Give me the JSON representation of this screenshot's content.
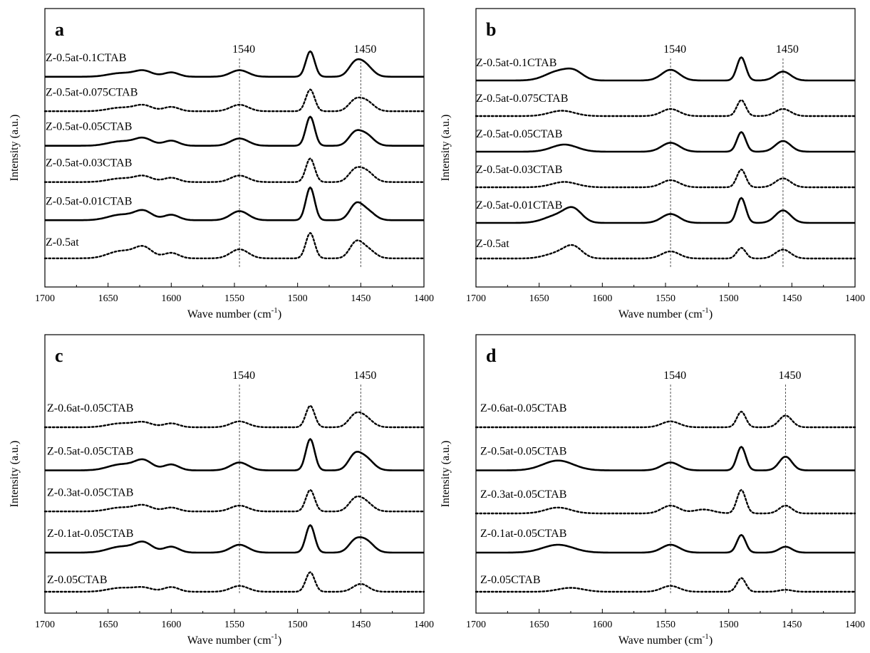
{
  "figure": {
    "x_ticks": [
      "1700",
      "1650",
      "1600",
      "1550",
      "1500",
      "1450",
      "1400"
    ]
  },
  "chart_data": [
    {
      "type": "line",
      "panel": "a",
      "xlabel": "Wave number (cm",
      "xlabel_sup": "-1",
      "xlabel_suffix": ")",
      "ylabel": "Intensity (a.u.)",
      "xlim": [
        1700,
        1400
      ],
      "y_ticks_shown": false,
      "reference_lines": [
        {
          "label": "1540",
          "x": 1546
        },
        {
          "label": "1450",
          "x": 1450
        }
      ],
      "series": [
        {
          "name": "Z-0.5at-0.1CTAB",
          "style": "solid",
          "baseline": 5.2,
          "peaks": [
            [
              1640,
              0.1,
              10
            ],
            [
              1622,
              0.16,
              7
            ],
            [
              1600,
              0.12,
              6
            ],
            [
              1546,
              0.18,
              7
            ],
            [
              1490,
              0.7,
              3.5
            ],
            [
              1455,
              0.3,
              5
            ],
            [
              1447,
              0.33,
              6
            ]
          ]
        },
        {
          "name": "Z-0.5at-0.075CTAB",
          "style": "dotted",
          "baseline": 4.25,
          "peaks": [
            [
              1640,
              0.1,
              10
            ],
            [
              1622,
              0.16,
              7
            ],
            [
              1600,
              0.12,
              6
            ],
            [
              1546,
              0.18,
              7
            ],
            [
              1490,
              0.6,
              3.5
            ],
            [
              1455,
              0.25,
              5
            ],
            [
              1446,
              0.28,
              6
            ]
          ]
        },
        {
          "name": "Z-0.5at-0.05CTAB",
          "style": "solid",
          "baseline": 3.3,
          "peaks": [
            [
              1640,
              0.12,
              10
            ],
            [
              1622,
              0.2,
              7
            ],
            [
              1600,
              0.14,
              6
            ],
            [
              1546,
              0.2,
              7
            ],
            [
              1490,
              0.8,
              3.5
            ],
            [
              1455,
              0.3,
              5
            ],
            [
              1446,
              0.3,
              6
            ]
          ]
        },
        {
          "name": "Z-0.5at-0.03CTAB",
          "style": "dotted",
          "baseline": 2.3,
          "peaks": [
            [
              1640,
              0.1,
              10
            ],
            [
              1622,
              0.16,
              7
            ],
            [
              1600,
              0.12,
              6
            ],
            [
              1546,
              0.18,
              7
            ],
            [
              1490,
              0.65,
              3.5
            ],
            [
              1455,
              0.28,
              5
            ],
            [
              1446,
              0.3,
              6
            ]
          ]
        },
        {
          "name": "Z-0.5at-0.01CTAB",
          "style": "solid",
          "baseline": 1.25,
          "peaks": [
            [
              1640,
              0.15,
              10
            ],
            [
              1622,
              0.25,
              7
            ],
            [
              1600,
              0.15,
              6
            ],
            [
              1546,
              0.25,
              7
            ],
            [
              1490,
              0.9,
              3.5
            ],
            [
              1454,
              0.4,
              5
            ],
            [
              1445,
              0.25,
              6
            ]
          ]
        },
        {
          "name": "Z-0.5at",
          "style": "dotted",
          "baseline": 0.2,
          "peaks": [
            [
              1640,
              0.2,
              10
            ],
            [
              1622,
              0.3,
              7
            ],
            [
              1600,
              0.15,
              6
            ],
            [
              1546,
              0.25,
              7
            ],
            [
              1490,
              0.7,
              3.5
            ],
            [
              1454,
              0.4,
              5
            ],
            [
              1445,
              0.25,
              6
            ]
          ]
        }
      ]
    },
    {
      "type": "line",
      "panel": "b",
      "xlabel": "Wave number (cm",
      "xlabel_sup": "-1",
      "xlabel_suffix": ")",
      "ylabel": "Intensity (a.u.)",
      "xlim": [
        1700,
        1400
      ],
      "y_ticks_shown": false,
      "reference_lines": [
        {
          "label": "1540",
          "x": 1546
        },
        {
          "label": "1450",
          "x": 1457
        }
      ],
      "series": [
        {
          "name": "Z-0.5at-0.1CTAB",
          "style": "solid",
          "baseline": 5.2,
          "peaks": [
            [
              1635,
              0.25,
              10
            ],
            [
              1622,
              0.2,
              7
            ],
            [
              1546,
              0.3,
              7
            ],
            [
              1490,
              0.65,
              3.5
            ],
            [
              1457,
              0.25,
              6
            ]
          ]
        },
        {
          "name": "Z-0.5at-0.075CTAB",
          "style": "dotted",
          "baseline": 4.2,
          "peaks": [
            [
              1632,
              0.15,
              10
            ],
            [
              1546,
              0.2,
              7
            ],
            [
              1490,
              0.45,
              3.5
            ],
            [
              1457,
              0.2,
              6
            ]
          ]
        },
        {
          "name": "Z-0.5at-0.05CTAB",
          "style": "solid",
          "baseline": 3.2,
          "peaks": [
            [
              1630,
              0.2,
              10
            ],
            [
              1546,
              0.25,
              7
            ],
            [
              1490,
              0.55,
              3.5
            ],
            [
              1457,
              0.3,
              6
            ]
          ]
        },
        {
          "name": "Z-0.5at-0.03CTAB",
          "style": "dotted",
          "baseline": 2.2,
          "peaks": [
            [
              1630,
              0.15,
              10
            ],
            [
              1546,
              0.2,
              7
            ],
            [
              1490,
              0.5,
              3.5
            ],
            [
              1457,
              0.25,
              6
            ]
          ]
        },
        {
          "name": "Z-0.5at-0.01CTAB",
          "style": "solid",
          "baseline": 1.2,
          "peaks": [
            [
              1636,
              0.2,
              10
            ],
            [
              1623,
              0.35,
              7
            ],
            [
              1546,
              0.25,
              7
            ],
            [
              1490,
              0.7,
              3.5
            ],
            [
              1457,
              0.35,
              6
            ]
          ]
        },
        {
          "name": "Z-0.5at",
          "style": "dotted",
          "baseline": 0.2,
          "peaks": [
            [
              1635,
              0.15,
              10
            ],
            [
              1623,
              0.3,
              7
            ],
            [
              1546,
              0.2,
              7
            ],
            [
              1490,
              0.3,
              3.5
            ],
            [
              1457,
              0.25,
              6
            ]
          ]
        }
      ]
    },
    {
      "type": "line",
      "panel": "c",
      "xlabel": "Wave number (cm",
      "xlabel_sup": "-1",
      "xlabel_suffix": ")",
      "ylabel": "Intensity (a.u.)",
      "xlim": [
        1700,
        1400
      ],
      "y_ticks_shown": false,
      "reference_lines": [
        {
          "label": "1540",
          "x": 1546
        },
        {
          "label": "1450",
          "x": 1450
        }
      ],
      "series": [
        {
          "name": "Z-0.6at-0.05CTAB",
          "style": "dotted",
          "baseline": 4.2,
          "peaks": [
            [
              1640,
              0.1,
              10
            ],
            [
              1622,
              0.12,
              7
            ],
            [
              1600,
              0.1,
              6
            ],
            [
              1546,
              0.15,
              7
            ],
            [
              1490,
              0.55,
              3.5
            ],
            [
              1455,
              0.25,
              5
            ],
            [
              1447,
              0.25,
              6
            ]
          ]
        },
        {
          "name": "Z-0.5at-0.05CTAB",
          "style": "solid",
          "baseline": 3.1,
          "peaks": [
            [
              1640,
              0.15,
              10
            ],
            [
              1622,
              0.25,
              7
            ],
            [
              1600,
              0.15,
              6
            ],
            [
              1546,
              0.2,
              7
            ],
            [
              1490,
              0.8,
              3.5
            ],
            [
              1455,
              0.35,
              5
            ],
            [
              1446,
              0.3,
              6
            ]
          ]
        },
        {
          "name": "Z-0.3at-0.05CTAB",
          "style": "dotted",
          "baseline": 2.05,
          "peaks": [
            [
              1640,
              0.1,
              10
            ],
            [
              1622,
              0.15,
              7
            ],
            [
              1600,
              0.1,
              6
            ],
            [
              1546,
              0.15,
              7
            ],
            [
              1490,
              0.55,
              3.5
            ],
            [
              1455,
              0.25,
              5
            ],
            [
              1447,
              0.25,
              6
            ]
          ]
        },
        {
          "name": "Z-0.1at-0.05CTAB",
          "style": "solid",
          "baseline": 1.0,
          "peaks": [
            [
              1640,
              0.15,
              10
            ],
            [
              1622,
              0.25,
              7
            ],
            [
              1600,
              0.15,
              6
            ],
            [
              1546,
              0.2,
              7
            ],
            [
              1490,
              0.7,
              3.5
            ],
            [
              1455,
              0.25,
              5
            ],
            [
              1446,
              0.3,
              6
            ]
          ]
        },
        {
          "name": "Z-0.05CTAB",
          "style": "dotted",
          "baseline": 0.0,
          "peaks": [
            [
              1640,
              0.1,
              10
            ],
            [
              1622,
              0.1,
              7
            ],
            [
              1600,
              0.12,
              6
            ],
            [
              1546,
              0.15,
              7
            ],
            [
              1490,
              0.5,
              3.5
            ],
            [
              1450,
              0.2,
              6
            ]
          ]
        }
      ]
    },
    {
      "type": "line",
      "panel": "d",
      "xlabel": "Wave number (cm",
      "xlabel_sup": "-1",
      "xlabel_suffix": ")",
      "ylabel": "Intensity (a.u.)",
      "xlim": [
        1700,
        1400
      ],
      "y_ticks_shown": false,
      "reference_lines": [
        {
          "label": "1540",
          "x": 1546
        },
        {
          "label": "1450",
          "x": 1455
        }
      ],
      "series": [
        {
          "name": "Z-0.6at-0.05CTAB",
          "style": "dotted",
          "baseline": 4.2,
          "peaks": [
            [
              1546,
              0.15,
              7
            ],
            [
              1490,
              0.4,
              3.5
            ],
            [
              1455,
              0.3,
              5
            ]
          ]
        },
        {
          "name": "Z-0.5at-0.05CTAB",
          "style": "solid",
          "baseline": 3.1,
          "peaks": [
            [
              1635,
              0.25,
              12
            ],
            [
              1546,
              0.2,
              7
            ],
            [
              1490,
              0.6,
              3.5
            ],
            [
              1455,
              0.35,
              5
            ]
          ]
        },
        {
          "name": "Z-0.3at-0.05CTAB",
          "style": "dotted",
          "baseline": 2.0,
          "peaks": [
            [
              1635,
              0.15,
              10
            ],
            [
              1546,
              0.2,
              7
            ],
            [
              1520,
              0.1,
              8
            ],
            [
              1490,
              0.6,
              3.5
            ],
            [
              1455,
              0.2,
              5
            ]
          ]
        },
        {
          "name": "Z-0.1at-0.05CTAB",
          "style": "solid",
          "baseline": 1.0,
          "peaks": [
            [
              1635,
              0.2,
              12
            ],
            [
              1546,
              0.2,
              7
            ],
            [
              1490,
              0.45,
              3.5
            ],
            [
              1455,
              0.15,
              5
            ]
          ]
        },
        {
          "name": "Z-0.05CTAB",
          "style": "dotted",
          "baseline": 0.0,
          "peaks": [
            [
              1625,
              0.1,
              10
            ],
            [
              1546,
              0.15,
              7
            ],
            [
              1490,
              0.35,
              3.5
            ],
            [
              1455,
              0.05,
              5
            ]
          ]
        }
      ]
    }
  ]
}
